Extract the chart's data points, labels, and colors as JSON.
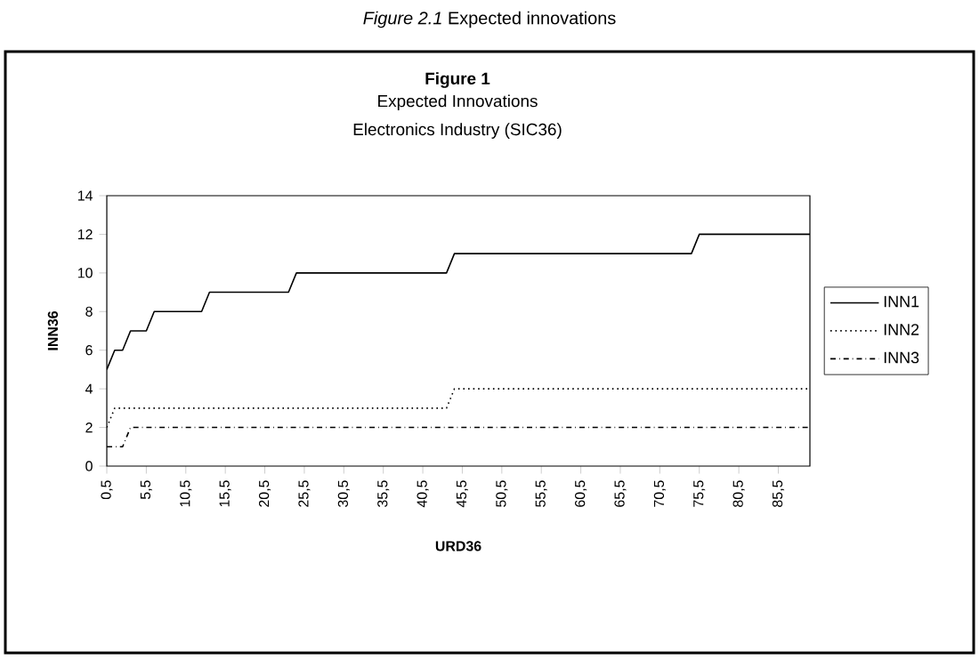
{
  "chart_data": {
    "type": "line",
    "title": "Figure 1",
    "subtitle": "Expected Innovations\nElectronics Industry (SIC36)",
    "annotations": [
      "*Figure 2.1* Expected innovations"
    ],
    "xlabel": "URD36",
    "ylabel": "INN36",
    "xlim": [
      0.5,
      89.5
    ],
    "ylim": [
      0,
      14
    ],
    "yticks": [
      0,
      2,
      4,
      6,
      8,
      10,
      12,
      14
    ],
    "xticks": [
      {
        "value": 0.5,
        "label": "0,5"
      },
      {
        "value": 5.5,
        "label": "5,5"
      },
      {
        "value": 10.5,
        "label": "10,5"
      },
      {
        "value": 15.5,
        "label": "15,5"
      },
      {
        "value": 20.5,
        "label": "20,5"
      },
      {
        "value": 25.5,
        "label": "25,5"
      },
      {
        "value": 30.5,
        "label": "30,5"
      },
      {
        "value": 35.5,
        "label": "35,5"
      },
      {
        "value": 40.5,
        "label": "40,5"
      },
      {
        "value": 45.5,
        "label": "45,5"
      },
      {
        "value": 50.5,
        "label": "50,5"
      },
      {
        "value": 55.5,
        "label": "55,5"
      },
      {
        "value": 60.5,
        "label": "60,5"
      },
      {
        "value": 65.5,
        "label": "65,5"
      },
      {
        "value": 70.5,
        "label": "70,5"
      },
      {
        "value": 75.5,
        "label": "75,5"
      },
      {
        "value": 80.5,
        "label": "80,5"
      },
      {
        "value": 85.5,
        "label": "85,5"
      }
    ],
    "legend": "right",
    "grid": false,
    "marker": "none",
    "series": [
      {
        "name": "INN1",
        "color": "#000000",
        "line_style": "solid",
        "x": [
          0.5,
          1.5,
          2.5,
          3.5,
          5.5,
          6.5,
          12.5,
          13.5,
          23.5,
          24.5,
          43.5,
          44.5,
          74.5,
          75.5,
          89.5
        ],
        "values": [
          5,
          6,
          6,
          7,
          7,
          8,
          8,
          9,
          9,
          10,
          10,
          11,
          11,
          12,
          12
        ]
      },
      {
        "name": "INN2",
        "color": "#000000",
        "line_style": "dotted",
        "x": [
          0.5,
          1.5,
          43.5,
          44.5,
          89.5
        ],
        "values": [
          2,
          3,
          3,
          4,
          4
        ]
      },
      {
        "name": "INN3",
        "color": "#000000",
        "line_style": "dashdot",
        "x": [
          0.5,
          2.5,
          3.5,
          89.5
        ],
        "values": [
          1,
          1,
          2,
          2
        ]
      }
    ]
  }
}
